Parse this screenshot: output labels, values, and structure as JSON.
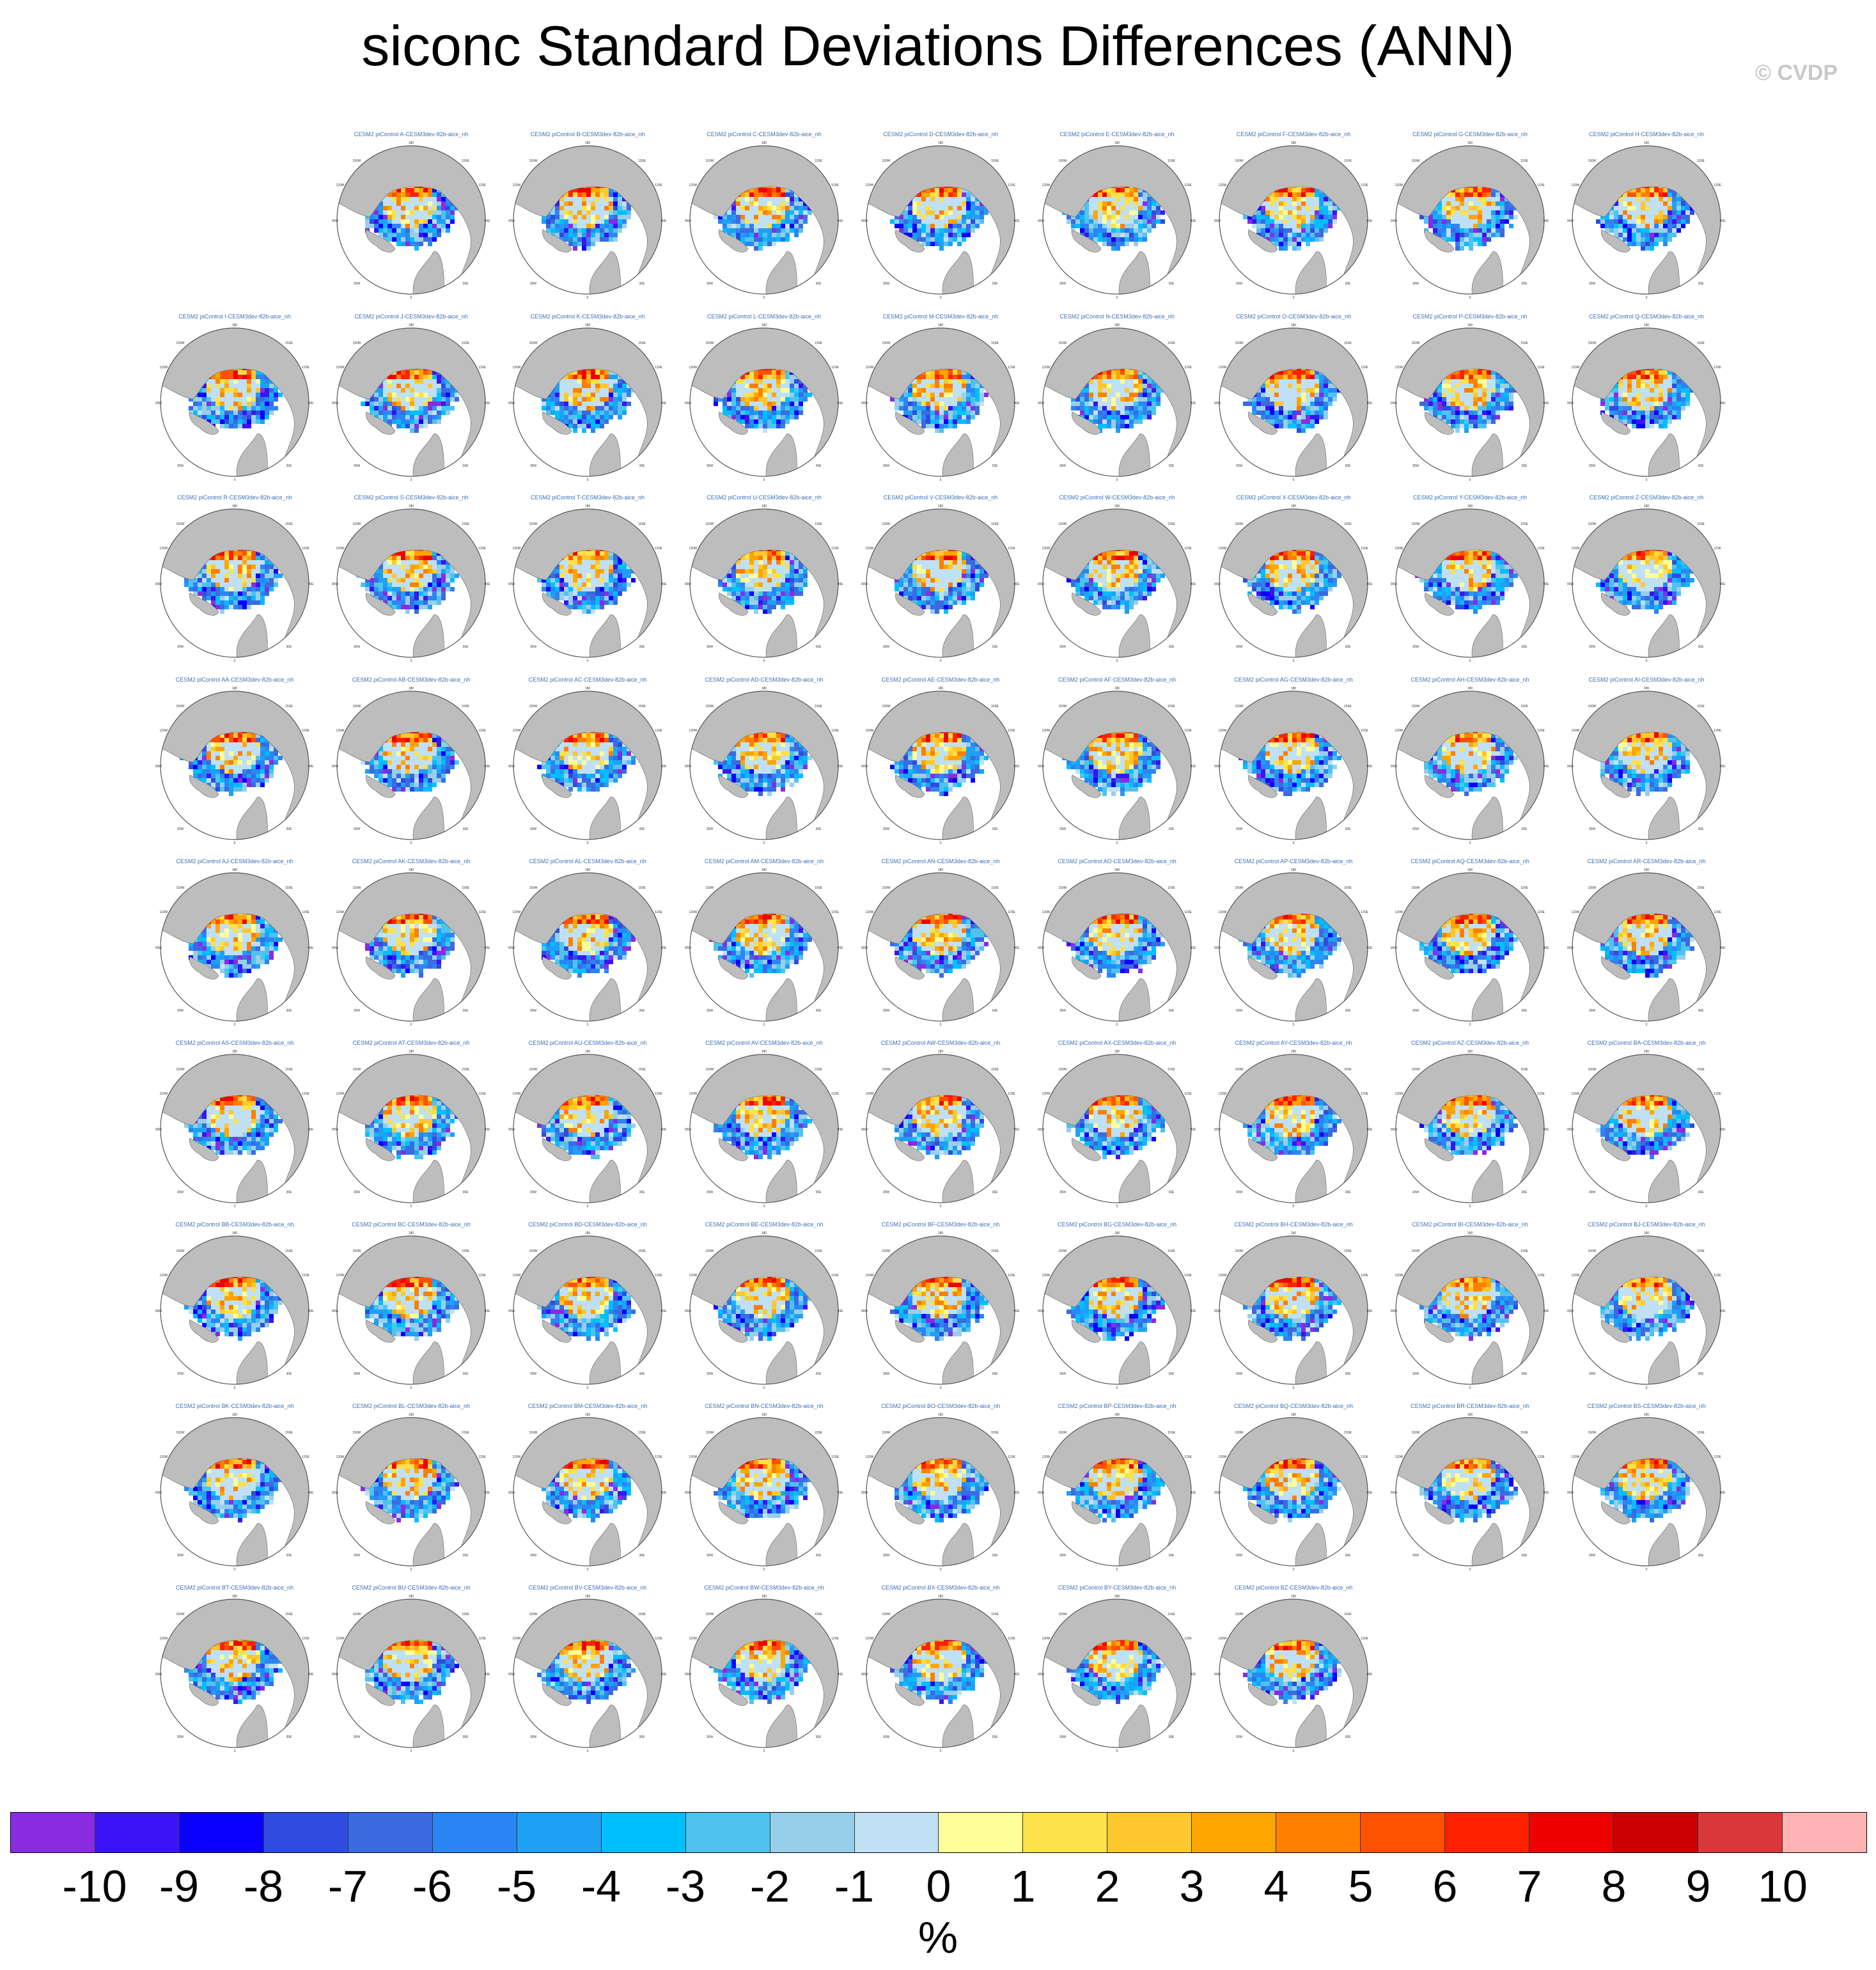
{
  "title": "siconc Standard Deviations Differences (ANN)",
  "credit": "© CVDP",
  "panel_title_template": "CESM2 piControl {m}-CESM3dev-82b-aice_nh",
  "map_labels": {
    "top": "180",
    "top_left": "150W",
    "top_right": "150E",
    "left_upper": "120W",
    "right_upper": "120E",
    "left": "90W",
    "right": "90E",
    "bottom_left": "30W",
    "bottom_right": "30E",
    "bottom": "0"
  },
  "panels": [
    {
      "member": "A",
      "title": "CESM2 piControl A-CESM3dev-82b-aice_nh"
    },
    {
      "member": "B",
      "title": "CESM2 piControl B-CESM3dev-82b-aice_nh"
    },
    {
      "member": "C",
      "title": "CESM2 piControl C-CESM3dev-82b-aice_nh"
    },
    {
      "member": "D",
      "title": "CESM2 piControl D-CESM3dev-82b-aice_nh"
    },
    {
      "member": "E",
      "title": "CESM2 piControl E-CESM3dev-82b-aice_nh"
    },
    {
      "member": "F",
      "title": "CESM2 piControl F-CESM3dev-82b-aice_nh"
    },
    {
      "member": "G",
      "title": "CESM2 piControl G-CESM3dev-82b-aice_nh"
    },
    {
      "member": "H",
      "title": "CESM2 piControl H-CESM3dev-82b-aice_nh"
    },
    {
      "member": "I",
      "title": "CESM2 piControl I-CESM3dev-82b-aice_nh"
    },
    {
      "member": "J",
      "title": "CESM2 piControl J-CESM3dev-82b-aice_nh"
    },
    {
      "member": "K",
      "title": "CESM2 piControl K-CESM3dev-82b-aice_nh"
    },
    {
      "member": "L",
      "title": "CESM2 piControl L-CESM3dev-82b-aice_nh"
    },
    {
      "member": "M",
      "title": "CESM2 piControl M-CESM3dev-82b-aice_nh"
    },
    {
      "member": "N",
      "title": "CESM2 piControl N-CESM3dev-82b-aice_nh"
    },
    {
      "member": "O",
      "title": "CESM2 piControl O-CESM3dev-82b-aice_nh"
    },
    {
      "member": "P",
      "title": "CESM2 piControl P-CESM3dev-82b-aice_nh"
    },
    {
      "member": "Q",
      "title": "CESM2 piControl Q-CESM3dev-82b-aice_nh"
    },
    {
      "member": "R",
      "title": "CESM2 piControl R-CESM3dev-82b-aice_nh"
    },
    {
      "member": "S",
      "title": "CESM2 piControl S-CESM3dev-82b-aice_nh"
    },
    {
      "member": "T",
      "title": "CESM2 piControl T-CESM3dev-82b-aice_nh"
    },
    {
      "member": "U",
      "title": "CESM2 piControl U-CESM3dev-82b-aice_nh"
    },
    {
      "member": "V",
      "title": "CESM2 piControl V-CESM3dev-82b-aice_nh"
    },
    {
      "member": "W",
      "title": "CESM2 piControl W-CESM3dev-82b-aice_nh"
    },
    {
      "member": "X",
      "title": "CESM2 piControl X-CESM3dev-82b-aice_nh"
    },
    {
      "member": "Y",
      "title": "CESM2 piControl Y-CESM3dev-82b-aice_nh"
    },
    {
      "member": "Z",
      "title": "CESM2 piControl Z-CESM3dev-82b-aice_nh"
    },
    {
      "member": "AA",
      "title": "CESM2 piControl AA-CESM3dev-82b-aice_nh"
    },
    {
      "member": "AB",
      "title": "CESM2 piControl AB-CESM3dev-82b-aice_nh"
    },
    {
      "member": "AC",
      "title": "CESM2 piControl AC-CESM3dev-82b-aice_nh"
    },
    {
      "member": "AD",
      "title": "CESM2 piControl AD-CESM3dev-82b-aice_nh"
    },
    {
      "member": "AE",
      "title": "CESM2 piControl AE-CESM3dev-82b-aice_nh"
    },
    {
      "member": "AF",
      "title": "CESM2 piControl AF-CESM3dev-82b-aice_nh"
    },
    {
      "member": "AG",
      "title": "CESM2 piControl AG-CESM3dev-82b-aice_nh"
    },
    {
      "member": "AH",
      "title": "CESM2 piControl AH-CESM3dev-82b-aice_nh"
    },
    {
      "member": "AI",
      "title": "CESM2 piControl AI-CESM3dev-82b-aice_nh"
    },
    {
      "member": "AJ",
      "title": "CESM2 piControl AJ-CESM3dev-82b-aice_nh"
    },
    {
      "member": "AK",
      "title": "CESM2 piControl AK-CESM3dev-82b-aice_nh"
    },
    {
      "member": "AL",
      "title": "CESM2 piControl AL-CESM3dev-82b-aice_nh"
    },
    {
      "member": "AM",
      "title": "CESM2 piControl AM-CESM3dev-82b-aice_nh"
    },
    {
      "member": "AN",
      "title": "CESM2 piControl AN-CESM3dev-82b-aice_nh"
    },
    {
      "member": "AO",
      "title": "CESM2 piControl AO-CESM3dev-82b-aice_nh"
    },
    {
      "member": "AP",
      "title": "CESM2 piControl AP-CESM3dev-82b-aice_nh"
    },
    {
      "member": "AQ",
      "title": "CESM2 piControl AQ-CESM3dev-82b-aice_nh"
    },
    {
      "member": "AR",
      "title": "CESM2 piControl AR-CESM3dev-82b-aice_nh"
    },
    {
      "member": "AS",
      "title": "CESM2 piControl AS-CESM3dev-82b-aice_nh"
    },
    {
      "member": "AT",
      "title": "CESM2 piControl AT-CESM3dev-82b-aice_nh"
    },
    {
      "member": "AU",
      "title": "CESM2 piControl AU-CESM3dev-82b-aice_nh"
    },
    {
      "member": "AV",
      "title": "CESM2 piControl AV-CESM3dev-82b-aice_nh"
    },
    {
      "member": "AW",
      "title": "CESM2 piControl AW-CESM3dev-82b-aice_nh"
    },
    {
      "member": "AX",
      "title": "CESM2 piControl AX-CESM3dev-82b-aice_nh"
    },
    {
      "member": "AY",
      "title": "CESM2 piControl AY-CESM3dev-82b-aice_nh"
    },
    {
      "member": "AZ",
      "title": "CESM2 piControl AZ-CESM3dev-82b-aice_nh"
    },
    {
      "member": "BA",
      "title": "CESM2 piControl BA-CESM3dev-82b-aice_nh"
    },
    {
      "member": "BB",
      "title": "CESM2 piControl BB-CESM3dev-82b-aice_nh"
    },
    {
      "member": "BC",
      "title": "CESM2 piControl BC-CESM3dev-82b-aice_nh"
    },
    {
      "member": "BD",
      "title": "CESM2 piControl BD-CESM3dev-82b-aice_nh"
    },
    {
      "member": "BE",
      "title": "CESM2 piControl BE-CESM3dev-82b-aice_nh"
    },
    {
      "member": "BF",
      "title": "CESM2 piControl BF-CESM3dev-82b-aice_nh"
    },
    {
      "member": "BG",
      "title": "CESM2 piControl BG-CESM3dev-82b-aice_nh"
    },
    {
      "member": "BH",
      "title": "CESM2 piControl BH-CESM3dev-82b-aice_nh"
    },
    {
      "member": "BI",
      "title": "CESM2 piControl BI-CESM3dev-82b-aice_nh"
    },
    {
      "member": "BJ",
      "title": "CESM2 piControl BJ-CESM3dev-82b-aice_nh"
    },
    {
      "member": "BK",
      "title": "CESM2 piControl BK-CESM3dev-82b-aice_nh"
    },
    {
      "member": "BL",
      "title": "CESM2 piControl BL-CESM3dev-82b-aice_nh"
    },
    {
      "member": "BM",
      "title": "CESM2 piControl BM-CESM3dev-82b-aice_nh"
    },
    {
      "member": "BN",
      "title": "CESM2 piControl BN-CESM3dev-82b-aice_nh"
    },
    {
      "member": "BO",
      "title": "CESM2 piControl BO-CESM3dev-82b-aice_nh"
    },
    {
      "member": "BP",
      "title": "CESM2 piControl BP-CESM3dev-82b-aice_nh"
    },
    {
      "member": "BQ",
      "title": "CESM2 piControl BQ-CESM3dev-82b-aice_nh"
    },
    {
      "member": "BR",
      "title": "CESM2 piControl BR-CESM3dev-82b-aice_nh"
    },
    {
      "member": "BS",
      "title": "CESM2 piControl BS-CESM3dev-82b-aice_nh"
    },
    {
      "member": "BT",
      "title": "CESM2 piControl BT-CESM3dev-82b-aice_nh"
    },
    {
      "member": "BU",
      "title": "CESM2 piControl BU-CESM3dev-82b-aice_nh"
    },
    {
      "member": "BV",
      "title": "CESM2 piControl BV-CESM3dev-82b-aice_nh"
    },
    {
      "member": "BW",
      "title": "CESM2 piControl BW-CESM3dev-82b-aice_nh"
    },
    {
      "member": "BX",
      "title": "CESM2 piControl BX-CESM3dev-82b-aice_nh"
    },
    {
      "member": "BY",
      "title": "CESM2 piControl BY-CESM3dev-82b-aice_nh"
    },
    {
      "member": "BZ",
      "title": "CESM2 piControl BZ-CESM3dev-82b-aice_nh"
    }
  ],
  "colorbar": {
    "units": "%",
    "colors": [
      "#8a2be2",
      "#3a14f5",
      "#0a00ff",
      "#2e4de0",
      "#3a6be0",
      "#2b86f5",
      "#1ea0f5",
      "#00bfff",
      "#4fc3ef",
      "#97cfea",
      "#bfe0f5",
      "#ffff99",
      "#ffe14a",
      "#ffc72e",
      "#ffa500",
      "#ff7f00",
      "#ff5200",
      "#ff2200",
      "#ee0000",
      "#cc0000",
      "#d93838",
      "#ffb3b3"
    ],
    "labels": [
      "-10",
      "-9",
      "-8",
      "-7",
      "-6",
      "-5",
      "-4",
      "-3",
      "-2",
      "-1",
      "0",
      "1",
      "2",
      "3",
      "4",
      "5",
      "6",
      "7",
      "8",
      "9",
      "10"
    ]
  }
}
